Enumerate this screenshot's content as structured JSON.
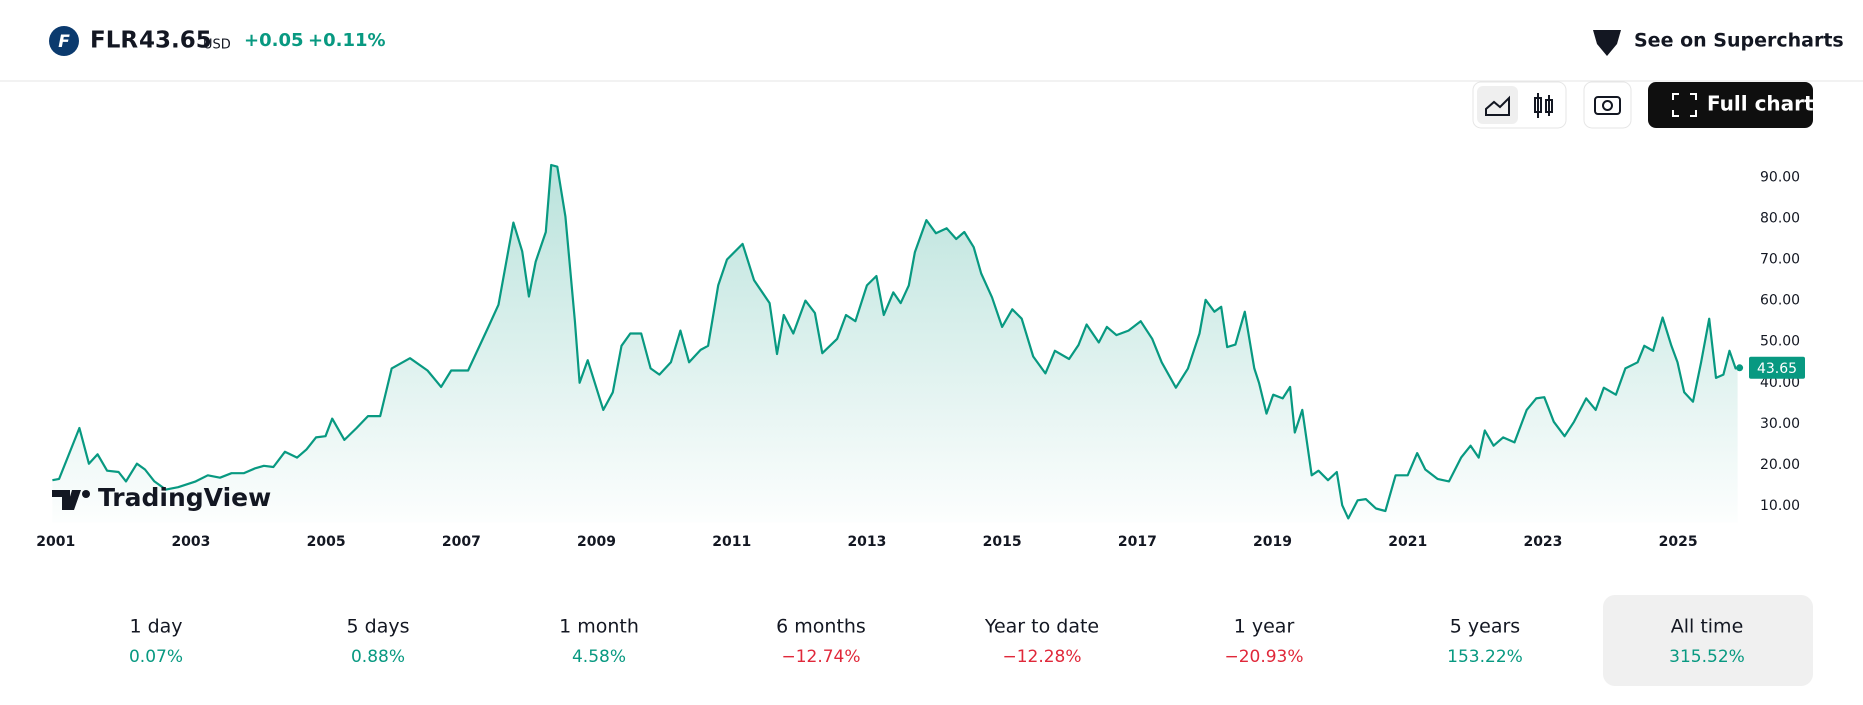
{
  "header": {
    "symbol": "FLR",
    "price": "43.65",
    "currency": "USD",
    "change": "+0.05",
    "change_percent": "+0.11%",
    "supercharts_button": "See on Supercharts"
  },
  "toolbar": {
    "full_chart_button": "Full chart"
  },
  "watermark": "TradingView",
  "chart_data": {
    "type": "line",
    "color": "#089981",
    "x": [
      2000.95,
      2001.05,
      2001.19,
      2001.35,
      2001.49,
      2001.62,
      2001.76,
      2001.93,
      2002.04,
      2002.2,
      2002.32,
      2002.46,
      2002.63,
      2002.81,
      2003.07,
      2003.25,
      2003.43,
      2003.6,
      2003.78,
      2003.95,
      2004.08,
      2004.22,
      2004.39,
      2004.57,
      2004.71,
      2004.85,
      2004.99,
      2005.09,
      2005.27,
      2005.45,
      2005.62,
      2005.8,
      2005.97,
      2006.24,
      2006.5,
      2006.7,
      2006.85,
      2007.1,
      2007.4,
      2007.55,
      2007.77,
      2007.9,
      2008.0,
      2008.1,
      2008.25,
      2008.33,
      2008.42,
      2008.54,
      2008.68,
      2008.75,
      2008.87,
      2009.1,
      2009.24,
      2009.37,
      2009.5,
      2009.66,
      2009.8,
      2009.93,
      2010.1,
      2010.24,
      2010.37,
      2010.54,
      2010.65,
      2010.8,
      2010.93,
      2011.16,
      2011.33,
      2011.56,
      2011.67,
      2011.77,
      2011.91,
      2012.09,
      2012.23,
      2012.34,
      2012.56,
      2012.69,
      2012.83,
      2013.0,
      2013.14,
      2013.25,
      2013.39,
      2013.5,
      2013.62,
      2013.71,
      2013.88,
      2014.02,
      2014.18,
      2014.32,
      2014.44,
      2014.58,
      2014.69,
      2014.85,
      2015.0,
      2015.15,
      2015.29,
      2015.46,
      2015.64,
      2015.78,
      2015.99,
      2016.13,
      2016.25,
      2016.43,
      2016.55,
      2016.69,
      2016.87,
      2017.05,
      2017.22,
      2017.36,
      2017.57,
      2017.75,
      2017.92,
      2018.01,
      2018.14,
      2018.24,
      2018.33,
      2018.45,
      2018.59,
      2018.73,
      2018.8,
      2018.91,
      2019.01,
      2019.15,
      2019.26,
      2019.33,
      2019.44,
      2019.58,
      2019.68,
      2019.82,
      2019.95,
      2020.03,
      2020.12,
      2020.26,
      2020.38,
      2020.53,
      2020.67,
      2020.82,
      2021.0,
      2021.14,
      2021.26,
      2021.44,
      2021.61,
      2021.79,
      2021.93,
      2022.05,
      2022.14,
      2022.27,
      2022.41,
      2022.58,
      2022.76,
      2022.9,
      2023.02,
      2023.16,
      2023.32,
      2023.46,
      2023.64,
      2023.78,
      2023.9,
      2024.08,
      2024.22,
      2024.4,
      2024.5,
      2024.63,
      2024.77,
      2024.9,
      2024.99,
      2025.09,
      2025.22,
      2025.34,
      2025.46,
      2025.56,
      2025.67,
      2025.76,
      2025.85,
      2025.88
    ],
    "values": [
      16.3,
      16.6,
      22.4,
      29,
      20.3,
      22.6,
      18.6,
      18.3,
      16,
      20.3,
      18.9,
      16,
      14,
      14.6,
      16,
      17.5,
      16.9,
      18,
      18,
      19.2,
      19.8,
      19.5,
      23.2,
      21.8,
      23.8,
      26.7,
      27,
      31.3,
      26.1,
      29,
      31.9,
      31.9,
      43.5,
      46,
      43,
      39,
      43,
      43,
      53.6,
      59,
      79,
      72,
      61,
      69.5,
      76.7,
      93,
      92.6,
      80.5,
      55,
      40,
      45.5,
      33.4,
      37.7,
      49,
      52,
      52,
      43.5,
      42,
      45,
      52.7,
      45,
      48,
      49,
      63.7,
      70,
      73.8,
      65,
      59.4,
      47,
      56.5,
      52,
      60,
      57,
      47.2,
      50.7,
      56.5,
      55,
      63.7,
      66,
      56.5,
      62,
      59.4,
      63.7,
      71.8,
      79.6,
      76.4,
      77.6,
      75,
      76.7,
      73,
      66.6,
      60.8,
      53.6,
      57.9,
      55.6,
      46.4,
      42.3,
      47.8,
      45.8,
      49.2,
      54.2,
      49.8,
      53.6,
      51.6,
      52.7,
      55,
      50.7,
      45,
      38.8,
      43.5,
      52,
      60.2,
      57.3,
      58.5,
      48.7,
      49.3,
      57.3,
      43.5,
      40,
      32.5,
      37.1,
      36.2,
      39,
      27.9,
      33.4,
      17.5,
      18.6,
      16.3,
      18.3,
      10.2,
      7,
      11.4,
      11.7,
      9.4,
      8.8,
      17.5,
      17.5,
      22.9,
      18.9,
      16.6,
      16,
      21.8,
      24.7,
      21.8,
      28.4,
      24.7,
      26.7,
      25.5,
      33.4,
      36.2,
      36.5,
      30.5,
      27,
      30.5,
      36.2,
      33.4,
      38.8,
      37.1,
      43.5,
      45,
      49,
      47.8,
      55.9,
      49,
      45,
      37.7,
      35.4,
      45,
      55.6,
      41.2,
      42,
      47.8,
      43.5,
      43.65
    ],
    "last_value": 43.65,
    "xlim": [
      2000.93,
      2026.1
    ],
    "xticks": [
      2001,
      2003,
      2005,
      2007,
      2009,
      2011,
      2013,
      2015,
      2017,
      2019,
      2021,
      2023,
      2025
    ],
    "ylim": [
      6,
      98
    ],
    "yticks": [
      {
        "value": 10,
        "label": "10.00"
      },
      {
        "value": 20,
        "label": "20.00"
      },
      {
        "value": 30,
        "label": "30.00"
      },
      {
        "value": 40,
        "label": "40.00"
      },
      {
        "value": 50,
        "label": "50.00"
      },
      {
        "value": 60,
        "label": "60.00"
      },
      {
        "value": 70,
        "label": "70.00"
      },
      {
        "value": 80,
        "label": "80.00"
      },
      {
        "value": 90,
        "label": "90.00"
      }
    ]
  },
  "periods": [
    {
      "label": "1 day",
      "value": "0.07%",
      "trend": "up"
    },
    {
      "label": "5 days",
      "value": "0.88%",
      "trend": "up"
    },
    {
      "label": "1 month",
      "value": "4.58%",
      "trend": "up"
    },
    {
      "label": "6 months",
      "value": "−12.74%",
      "trend": "down"
    },
    {
      "label": "Year to date",
      "value": "−12.28%",
      "trend": "down"
    },
    {
      "label": "1 year",
      "value": "−20.93%",
      "trend": "down"
    },
    {
      "label": "5 years",
      "value": "153.22%",
      "trend": "up"
    },
    {
      "label": "All time",
      "value": "315.52%",
      "trend": "up",
      "selected": true
    }
  ]
}
